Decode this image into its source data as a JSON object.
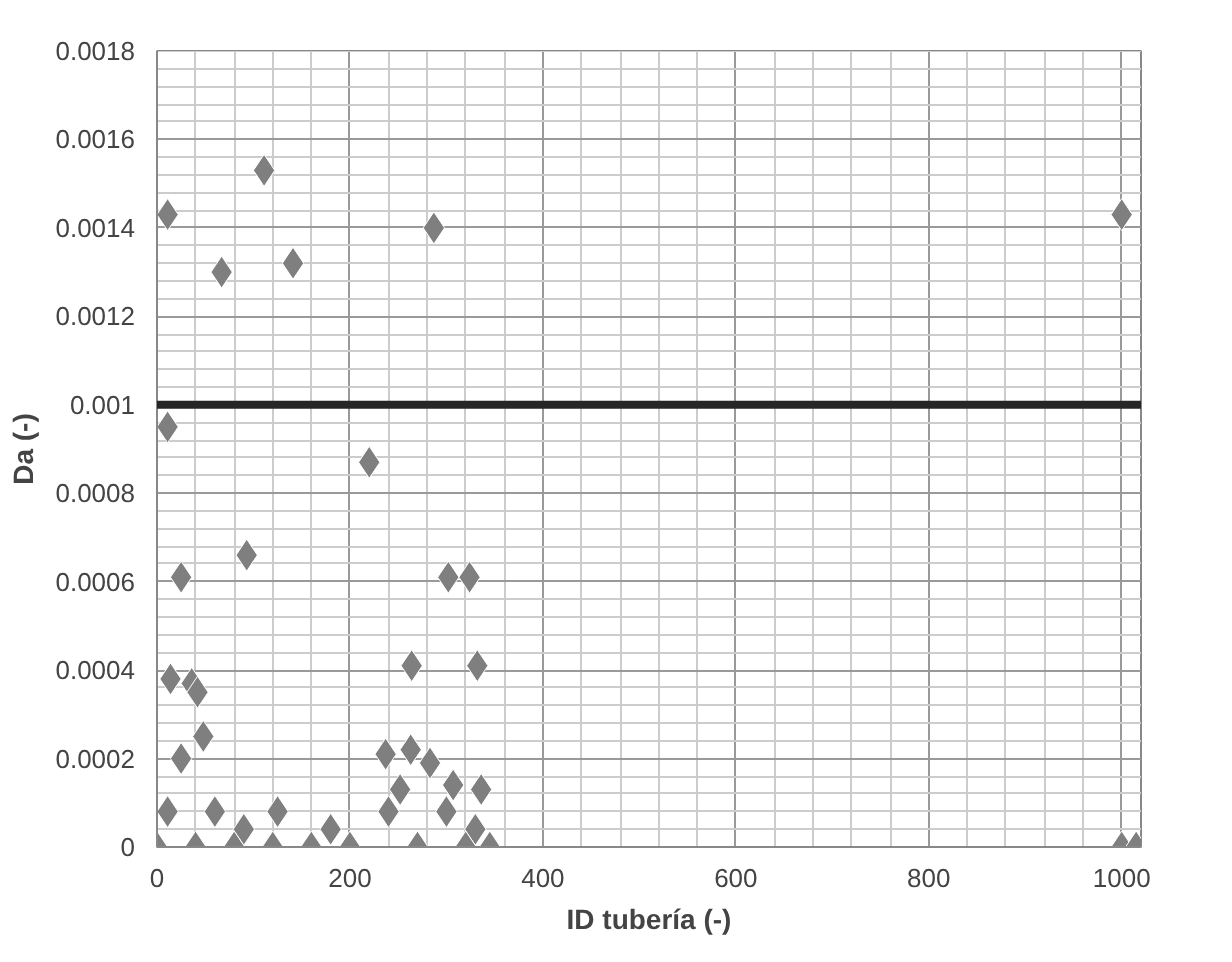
{
  "chart_data": {
    "type": "scatter",
    "xlabel": "ID tubería (-)",
    "ylabel": "Da (-)",
    "xlim": [
      0,
      1020
    ],
    "xticks": [
      0,
      200,
      400,
      600,
      800,
      1000
    ],
    "ylim": [
      0,
      0.0018
    ],
    "yticks": [
      0,
      0.0002,
      0.0004,
      0.0006,
      0.0008,
      0.001,
      0.0012,
      0.0014,
      0.0016,
      0.0018
    ],
    "grid": true,
    "marker": "diamond",
    "series": [
      {
        "color": "#7f7f7f",
        "x": [
          11,
          111,
          67,
          141,
          287,
          1000,
          11,
          220,
          25,
          93,
          302,
          324,
          264,
          332,
          14,
          36,
          42,
          48,
          25,
          237,
          263,
          283,
          252,
          307,
          336,
          11,
          60,
          125,
          240,
          300,
          90,
          180,
          330,
          0,
          40,
          80,
          120,
          160,
          200,
          270,
          320,
          345,
          1000,
          1015
        ],
        "values": [
          0.00143,
          0.00153,
          0.0013,
          0.00132,
          0.0014,
          0.00143,
          0.00095,
          0.00087,
          0.00061,
          0.00066,
          0.00061,
          0.00061,
          0.00041,
          0.00041,
          0.00038,
          0.00037,
          0.00035,
          0.00025,
          0.0002,
          0.00021,
          0.00022,
          0.00019,
          0.00013,
          0.00014,
          0.00013,
          8e-05,
          8e-05,
          8e-05,
          8e-05,
          8e-05,
          4e-05,
          4e-05,
          4e-05,
          0,
          0,
          0,
          0,
          0,
          0,
          0,
          0,
          0,
          0,
          0
        ]
      }
    ],
    "ref_lines": [
      {
        "axis": "y",
        "value": 0.001,
        "color": "#262626",
        "line_style": "solid"
      }
    ]
  }
}
